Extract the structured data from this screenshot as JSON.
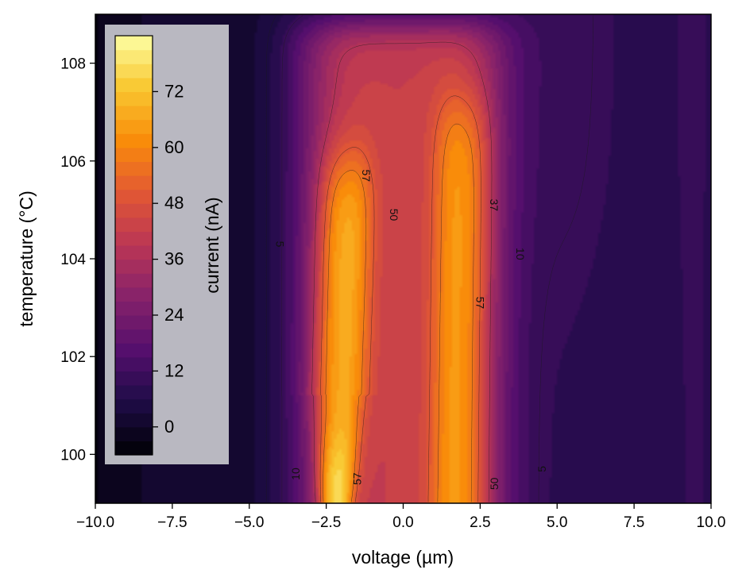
{
  "chart_data": {
    "type": "heatmap",
    "subtype": "filled-contour",
    "title": "",
    "xlabel": "voltage (µm)",
    "ylabel": "temperature (°C)",
    "xlim": [
      -10,
      10
    ],
    "ylim": [
      99,
      109
    ],
    "x_ticks": [
      -10,
      -7.5,
      -5,
      -2.5,
      0,
      2.5,
      5,
      7.5,
      10
    ],
    "x_tick_labels": [
      "−10.0",
      "−7.5",
      "−5.0",
      "−2.5",
      "0.0",
      "2.5",
      "5.0",
      "7.5",
      "10.0"
    ],
    "y_ticks": [
      100,
      102,
      104,
      106,
      108
    ],
    "y_tick_labels": [
      "100",
      "102",
      "104",
      "106",
      "108"
    ],
    "colormap": "inferno",
    "colorbar": {
      "label": "current (nA)",
      "range": [
        -6,
        84
      ],
      "ticks": [
        0,
        12,
        24,
        36,
        48,
        60,
        72
      ],
      "tick_labels": [
        "0",
        "12",
        "24",
        "36",
        "48",
        "60",
        "72"
      ],
      "placement": "upper-left inset"
    },
    "contour_levels": [
      5,
      10,
      37,
      50,
      57
    ],
    "contour_labels": [
      {
        "text": "5",
        "x": -4.0,
        "y": 104.3,
        "rotation": 90
      },
      {
        "text": "10",
        "x": -3.5,
        "y": 99.6,
        "rotation": -90
      },
      {
        "text": "57",
        "x": -1.5,
        "y": 99.5,
        "rotation": -90
      },
      {
        "text": "57",
        "x": -1.2,
        "y": 105.7,
        "rotation": 90
      },
      {
        "text": "50",
        "x": -0.3,
        "y": 104.9,
        "rotation": 90
      },
      {
        "text": "57",
        "x": 2.5,
        "y": 103.1,
        "rotation": 90
      },
      {
        "text": "37",
        "x": 2.95,
        "y": 105.1,
        "rotation": 90
      },
      {
        "text": "50",
        "x": 2.95,
        "y": 99.4,
        "rotation": -90
      },
      {
        "text": "10",
        "x": 3.8,
        "y": 104.1,
        "rotation": 90
      },
      {
        "text": "5",
        "x": 4.5,
        "y": 99.7,
        "rotation": -90
      }
    ],
    "peaks": [
      {
        "center_x": -2.2,
        "y_range": [
          99,
          106
        ],
        "max_current": 82
      },
      {
        "center_x": 1.8,
        "y_range": [
          99,
          107.2
        ],
        "max_current": 66
      }
    ],
    "ridge": {
      "x_range": [
        -2.3,
        2.2
      ],
      "y_top": 108.8,
      "current": 42
    },
    "background_current": 6
  }
}
